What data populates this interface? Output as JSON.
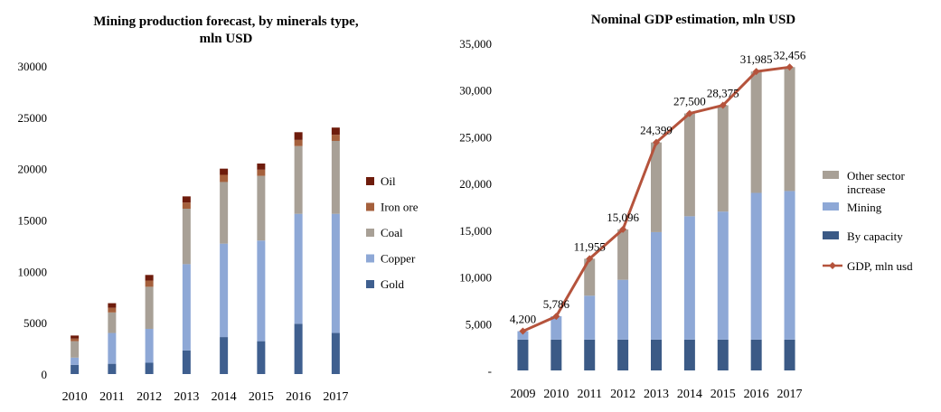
{
  "chart_data": [
    {
      "type": "bar",
      "stacked": true,
      "title": "Mining production forecast, by minerals type, mln USD",
      "title_lines": [
        "Mining production forecast, by minerals type,",
        "mln USD"
      ],
      "categories": [
        "2010",
        "2011",
        "2012",
        "2013",
        "2014",
        "2015",
        "2016",
        "2017"
      ],
      "ylim": [
        0,
        30000
      ],
      "yticks": [
        "0",
        "5000",
        "10000",
        "15000",
        "20000",
        "25000",
        "30000"
      ],
      "legend_position": "right",
      "grid": false,
      "series": [
        {
          "name": "Gold",
          "color": "#3f5f8f",
          "values": [
            900,
            1000,
            1100,
            2300,
            3600,
            3200,
            4900,
            4000
          ]
        },
        {
          "name": "Copper",
          "color": "#8ea8d6",
          "values": [
            700,
            3000,
            3300,
            8400,
            9100,
            9800,
            10700,
            11600
          ]
        },
        {
          "name": "Coal",
          "color": "#a8a096",
          "values": [
            1600,
            2000,
            4100,
            5400,
            6000,
            6300,
            6600,
            7100
          ]
        },
        {
          "name": "Iron ore",
          "color": "#a5603c",
          "values": [
            250,
            450,
            600,
            600,
            700,
            600,
            600,
            600
          ]
        },
        {
          "name": "Oil",
          "color": "#6e1c0c",
          "values": [
            300,
            450,
            550,
            600,
            600,
            600,
            750,
            700
          ]
        }
      ],
      "legend_order": [
        "Oil",
        "Iron ore",
        "Coal",
        "Copper",
        "Gold"
      ]
    },
    {
      "type": "bar+line",
      "stacked": true,
      "title": "Nominal GDP estimation, mln USD",
      "categories": [
        "2009",
        "2010",
        "2011",
        "2012",
        "2013",
        "2014",
        "2015",
        "2016",
        "2017"
      ],
      "ylim": [
        0,
        35000
      ],
      "yticks": [
        "-",
        "5,000",
        "10,000",
        "15,000",
        "20,000",
        "25,000",
        "30,000",
        "35,000"
      ],
      "legend_position": "right",
      "grid": false,
      "series": [
        {
          "name": "By capacity",
          "color": "#3b5a86",
          "values": [
            3300,
            3300,
            3300,
            3300,
            3300,
            3300,
            3300,
            3300,
            3300
          ]
        },
        {
          "name": "Mining",
          "color": "#8ea8d6",
          "values": [
            900,
            2500,
            4700,
            6400,
            11500,
            13200,
            13700,
            15700,
            15900
          ]
        },
        {
          "name": "Other sector increase",
          "color": "#a8a096",
          "values": [
            0,
            0,
            3955,
            5396,
            9599,
            11000,
            11375,
            12985,
            13256
          ]
        }
      ],
      "line": {
        "name": "GDP, mln usd",
        "color": "#b5533c",
        "values": [
          4200,
          5786,
          11955,
          15096,
          24399,
          27500,
          28375,
          31985,
          32456
        ],
        "labels": [
          "4,200",
          "5,786",
          "11,955",
          "15,096",
          "24,399",
          "27,500",
          "28,375",
          "31,985",
          "32,456"
        ]
      },
      "legend_entries": [
        {
          "name": "Other sector",
          "name2": "increase",
          "series": "Other sector increase"
        },
        {
          "name": "Mining",
          "series": "Mining"
        },
        {
          "name": "By capacity",
          "series": "By capacity"
        },
        {
          "name": "GDP, mln usd",
          "series": "line"
        }
      ]
    }
  ]
}
